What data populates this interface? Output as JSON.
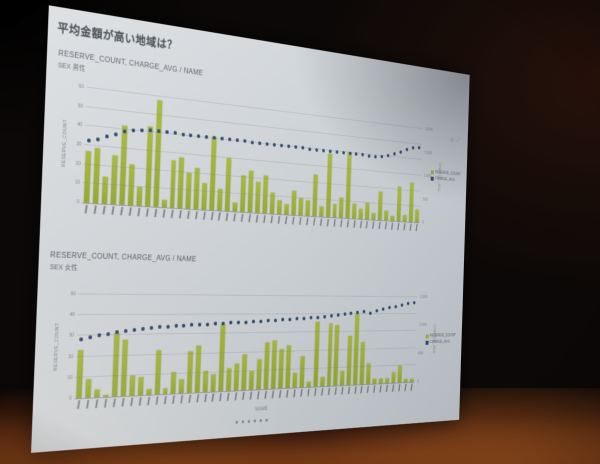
{
  "slide": {
    "title": "平均金額が高い地域は？",
    "xaxis_title": "NAME",
    "icons": {
      "chart_menu": "⚙",
      "chart_expand": "⤢"
    },
    "colors": {
      "bar": "#9eb22e",
      "dot": "#2c4a70",
      "slide_bg": "#cfd4d8",
      "room_glow": "#7c3e16"
    }
  },
  "chart_data": [
    {
      "type": "bar",
      "header": "RESERVE_COUNT, CHARGE_AVG / NAME",
      "filter": "SEX 男性",
      "xlabel": "NAME",
      "ylabel": "RESERVE_COUNT",
      "y2label": "CHARGE_AVG",
      "n_categories": 46,
      "ylim": [
        0,
        60
      ],
      "y2lim": [
        0,
        2000
      ],
      "yticks_left": [
        0,
        10,
        20,
        30,
        40,
        50,
        60
      ],
      "yticks_right": [
        "0",
        "500",
        "1,000",
        "1,500",
        "2,000"
      ],
      "legend_position": "right",
      "series": [
        {
          "name": "RESERVE_COUNT",
          "kind": "bar",
          "color": "#9eb22e",
          "values": [
            27,
            29,
            14,
            26,
            42,
            22,
            10,
            43,
            58,
            4,
            26,
            28,
            20,
            23,
            15,
            41,
            12,
            30,
            5,
            21,
            24,
            18,
            22,
            12,
            8,
            6,
            14,
            10,
            9,
            25,
            6,
            38,
            8,
            12,
            40,
            9,
            6,
            10,
            4,
            18,
            6,
            3,
            22,
            4,
            25,
            8
          ]
        },
        {
          "name": "CHARGE_AVG",
          "kind": "scatter",
          "color": "#2c4a70",
          "axis": "right",
          "values": [
            1080,
            1120,
            1180,
            1240,
            1300,
            1340,
            1360,
            1370,
            1370,
            1368,
            1366,
            1364,
            1362,
            1360,
            1358,
            1356,
            1354,
            1352,
            1350,
            1348,
            1346,
            1344,
            1342,
            1340,
            1338,
            1336,
            1334,
            1332,
            1330,
            1328,
            1326,
            1324,
            1322,
            1320,
            1318,
            1316,
            1314,
            1312,
            1310,
            1320,
            1350,
            1400,
            1460,
            1530,
            1570,
            1590
          ]
        }
      ]
    },
    {
      "type": "bar",
      "header": "RESERVE_COUNT, CHARGE_AVG / NAME",
      "filter": "SEX 女性",
      "xlabel": "NAME",
      "ylabel": "RESERVE_COUNT",
      "y2label": "CHARGE_AVG",
      "n_categories": 46,
      "ylim": [
        0,
        50
      ],
      "y2lim": [
        0,
        1600
      ],
      "yticks_left": [
        0,
        10,
        20,
        30,
        40,
        50
      ],
      "yticks_right": [
        "0",
        "500",
        "1,000",
        "1,500"
      ],
      "legend_position": "right",
      "series": [
        {
          "name": "RESERVE_COUNT",
          "kind": "bar",
          "color": "#9eb22e",
          "values": [
            23,
            9,
            4,
            1,
            31,
            28,
            10,
            9,
            3,
            22,
            3,
            11,
            7,
            21,
            24,
            11,
            9,
            35,
            12,
            14,
            19,
            10,
            16,
            25,
            26,
            21,
            23,
            8,
            17,
            3,
            36,
            5,
            35,
            34,
            8,
            28,
            40,
            24,
            12,
            3,
            3,
            3,
            6,
            10,
            2,
            2
          ]
        },
        {
          "name": "CHARGE_AVG",
          "kind": "scatter",
          "color": "#2c4a70",
          "axis": "right",
          "values": [
            900,
            930,
            960,
            985,
            1005,
            1025,
            1045,
            1060,
            1070,
            1080,
            1090,
            1098,
            1105,
            1112,
            1118,
            1124,
            1130,
            1136,
            1142,
            1148,
            1154,
            1160,
            1166,
            1172,
            1178,
            1186,
            1194,
            1202,
            1210,
            1220,
            1230,
            1240,
            1252,
            1264,
            1278,
            1292,
            1308,
            1324,
            1300,
            1350,
            1375,
            1400,
            1425,
            1450,
            1480,
            1500
          ]
        }
      ]
    }
  ]
}
